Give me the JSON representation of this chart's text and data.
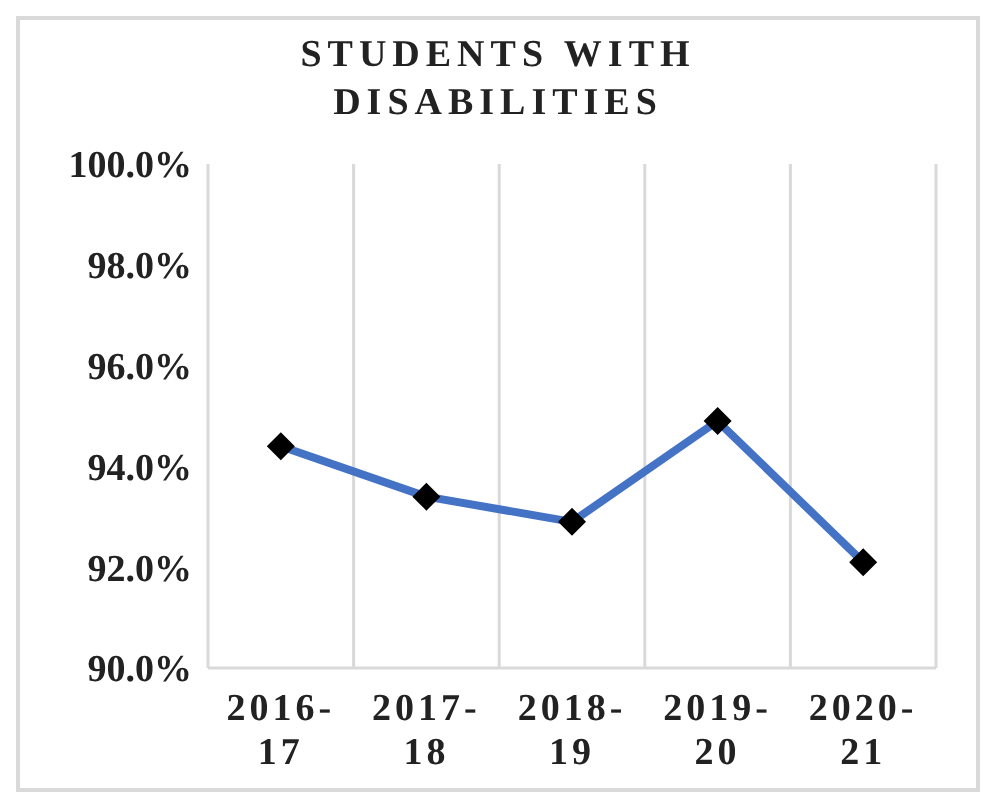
{
  "chart_data": {
    "type": "line",
    "title": "STUDENTS WITH DISABILITIES",
    "categories": [
      "2016-17",
      "2017-18",
      "2018-19",
      "2019-20",
      "2020-21"
    ],
    "series": [
      {
        "color": "#4472c4",
        "values": [
          94.4,
          93.4,
          92.9,
          94.9,
          92.1
        ]
      }
    ],
    "ylim": [
      90,
      100
    ],
    "yticks": [
      {
        "value": 90,
        "label": "90.0%"
      },
      {
        "value": 92,
        "label": "92.0%"
      },
      {
        "value": 94,
        "label": "94.0%"
      },
      {
        "value": 96,
        "label": "96.0%"
      },
      {
        "value": 98,
        "label": "98.0%"
      },
      {
        "value": 100,
        "label": "100.0%"
      }
    ],
    "grid": "x",
    "legend": false,
    "marker": "diamond",
    "line_style": "solid"
  }
}
